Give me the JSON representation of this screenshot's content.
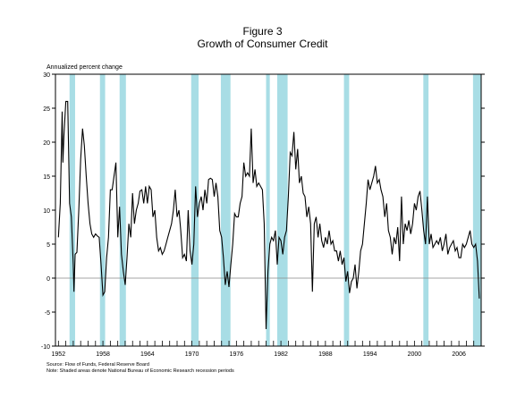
{
  "figure_label": "Figure 3",
  "title": "Growth of Consumer Credit",
  "ylabel": "Annualized percent change",
  "notes": {
    "source": "Source: Flow of Funds, Federal Reserve Board",
    "note": "Note: Shaded areas denote National Bureau of Economic Research recession periods"
  },
  "colors": {
    "recession": "#a8dde5",
    "line": "#000000",
    "zero_line": "#888888"
  },
  "chart_data": {
    "type": "line",
    "title": "Growth of Consumer Credit",
    "ylabel": "Annualized percent change",
    "xlim": [
      1951.6,
      2009.0
    ],
    "ylim": [
      -10,
      30
    ],
    "yticks": [
      -10,
      -5,
      0,
      5,
      10,
      15,
      20,
      25,
      30
    ],
    "xticks": [
      1952,
      1958,
      1964,
      1970,
      1976,
      1982,
      1988,
      1994,
      2000,
      2006
    ],
    "reference_line": 0,
    "recessions": [
      [
        1953.5,
        1954.25
      ],
      [
        1957.6,
        1958.3
      ],
      [
        1960.25,
        1961.1
      ],
      [
        1969.9,
        1970.9
      ],
      [
        1973.9,
        1975.2
      ],
      [
        1980.0,
        1980.5
      ],
      [
        1981.5,
        1982.9
      ],
      [
        1990.5,
        1991.2
      ],
      [
        2001.2,
        2001.9
      ],
      [
        2007.9,
        2009.0
      ]
    ],
    "series": [
      {
        "values": [
          [
            1952.0,
            6
          ],
          [
            1952.25,
            11
          ],
          [
            1952.5,
            24.5
          ],
          [
            1952.6,
            17
          ],
          [
            1952.75,
            21
          ],
          [
            1953.0,
            26
          ],
          [
            1953.25,
            26
          ],
          [
            1953.5,
            11
          ],
          [
            1953.75,
            9
          ],
          [
            1954.0,
            2
          ],
          [
            1954.1,
            -2
          ],
          [
            1954.25,
            3.5
          ],
          [
            1954.5,
            3.8
          ],
          [
            1954.75,
            10
          ],
          [
            1955.0,
            17.5
          ],
          [
            1955.25,
            22
          ],
          [
            1955.5,
            19.5
          ],
          [
            1955.75,
            15
          ],
          [
            1956.0,
            11
          ],
          [
            1956.25,
            8
          ],
          [
            1956.5,
            6.5
          ],
          [
            1956.75,
            6
          ],
          [
            1957.0,
            6.5
          ],
          [
            1957.25,
            6.2
          ],
          [
            1957.5,
            6
          ],
          [
            1957.75,
            2
          ],
          [
            1958.0,
            -2.5
          ],
          [
            1958.25,
            -2
          ],
          [
            1958.5,
            3
          ],
          [
            1958.75,
            6
          ],
          [
            1959.0,
            13
          ],
          [
            1959.25,
            13
          ],
          [
            1959.5,
            15
          ],
          [
            1959.75,
            17
          ],
          [
            1960.0,
            6
          ],
          [
            1960.25,
            10.5
          ],
          [
            1960.5,
            3.5
          ],
          [
            1960.75,
            1
          ],
          [
            1961.0,
            -1
          ],
          [
            1961.25,
            3
          ],
          [
            1961.5,
            8
          ],
          [
            1961.75,
            6
          ],
          [
            1962.0,
            12.5
          ],
          [
            1962.25,
            8
          ],
          [
            1962.5,
            10
          ],
          [
            1962.75,
            11
          ],
          [
            1963.0,
            12.8
          ],
          [
            1963.25,
            13
          ],
          [
            1963.5,
            11
          ],
          [
            1963.75,
            13.5
          ],
          [
            1964.0,
            11
          ],
          [
            1964.25,
            13.5
          ],
          [
            1964.5,
            13
          ],
          [
            1964.75,
            9
          ],
          [
            1965.0,
            10
          ],
          [
            1965.25,
            6
          ],
          [
            1965.5,
            4
          ],
          [
            1965.75,
            4.5
          ],
          [
            1966.0,
            3.5
          ],
          [
            1966.25,
            4
          ],
          [
            1966.5,
            5
          ],
          [
            1966.75,
            6
          ],
          [
            1967.0,
            7
          ],
          [
            1967.25,
            8
          ],
          [
            1967.5,
            10
          ],
          [
            1967.75,
            13
          ],
          [
            1968.0,
            9
          ],
          [
            1968.25,
            10
          ],
          [
            1968.5,
            7
          ],
          [
            1968.75,
            3
          ],
          [
            1969.0,
            3.5
          ],
          [
            1969.25,
            2.5
          ],
          [
            1969.5,
            10
          ],
          [
            1969.75,
            4
          ],
          [
            1970.0,
            2
          ],
          [
            1970.25,
            5
          ],
          [
            1970.5,
            13.5
          ],
          [
            1970.75,
            9
          ],
          [
            1971.0,
            11
          ],
          [
            1971.25,
            12
          ],
          [
            1971.5,
            10
          ],
          [
            1971.75,
            13
          ],
          [
            1972.0,
            11
          ],
          [
            1972.25,
            14.5
          ],
          [
            1972.5,
            14.7
          ],
          [
            1972.75,
            14.5
          ],
          [
            1973.0,
            12
          ],
          [
            1973.25,
            14
          ],
          [
            1973.5,
            12
          ],
          [
            1973.75,
            7
          ],
          [
            1974.0,
            6
          ],
          [
            1974.25,
            3
          ],
          [
            1974.5,
            -1
          ],
          [
            1974.75,
            1
          ],
          [
            1975.0,
            -1.3
          ],
          [
            1975.25,
            2
          ],
          [
            1975.5,
            5
          ],
          [
            1975.75,
            9.5
          ],
          [
            1976.0,
            9
          ],
          [
            1976.25,
            9
          ],
          [
            1976.5,
            11
          ],
          [
            1976.75,
            12
          ],
          [
            1977.0,
            17
          ],
          [
            1977.25,
            15
          ],
          [
            1977.5,
            15.5
          ],
          [
            1977.75,
            15
          ],
          [
            1978.0,
            22
          ],
          [
            1978.25,
            14
          ],
          [
            1978.5,
            16
          ],
          [
            1978.75,
            13.5
          ],
          [
            1979.0,
            14
          ],
          [
            1979.25,
            13.5
          ],
          [
            1979.5,
            13
          ],
          [
            1979.75,
            8
          ],
          [
            1980.0,
            -7.5
          ],
          [
            1980.25,
            1
          ],
          [
            1980.5,
            5
          ],
          [
            1980.75,
            6
          ],
          [
            1981.0,
            5.5
          ],
          [
            1981.25,
            7
          ],
          [
            1981.5,
            2
          ],
          [
            1981.75,
            6
          ],
          [
            1982.0,
            5.5
          ],
          [
            1982.25,
            3.5
          ],
          [
            1982.5,
            6
          ],
          [
            1982.75,
            7
          ],
          [
            1983.0,
            12
          ],
          [
            1983.25,
            18.5
          ],
          [
            1983.5,
            18
          ],
          [
            1983.75,
            21.5
          ],
          [
            1984.0,
            16
          ],
          [
            1984.25,
            19
          ],
          [
            1984.5,
            14
          ],
          [
            1984.75,
            15
          ],
          [
            1985.0,
            12.5
          ],
          [
            1985.25,
            12
          ],
          [
            1985.5,
            9
          ],
          [
            1985.75,
            10.5
          ],
          [
            1986.0,
            8
          ],
          [
            1986.25,
            -2
          ],
          [
            1986.5,
            8
          ],
          [
            1986.75,
            9
          ],
          [
            1987.0,
            6
          ],
          [
            1987.25,
            8
          ],
          [
            1987.5,
            5.5
          ],
          [
            1987.75,
            4.5
          ],
          [
            1988.0,
            6
          ],
          [
            1988.25,
            5
          ],
          [
            1988.5,
            7
          ],
          [
            1988.75,
            5
          ],
          [
            1989.0,
            5.5
          ],
          [
            1989.25,
            4
          ],
          [
            1989.5,
            4
          ],
          [
            1989.75,
            2.5
          ],
          [
            1990.0,
            4
          ],
          [
            1990.25,
            2
          ],
          [
            1990.5,
            3
          ],
          [
            1990.75,
            -0.5
          ],
          [
            1991.0,
            1
          ],
          [
            1991.25,
            -2.2
          ],
          [
            1991.5,
            -0.5
          ],
          [
            1991.75,
            0
          ],
          [
            1992.0,
            2
          ],
          [
            1992.25,
            -1.5
          ],
          [
            1992.5,
            1
          ],
          [
            1992.75,
            4
          ],
          [
            1993.0,
            5
          ],
          [
            1993.25,
            8
          ],
          [
            1993.5,
            11
          ],
          [
            1993.75,
            14.5
          ],
          [
            1994.0,
            13
          ],
          [
            1994.25,
            14
          ],
          [
            1994.5,
            15
          ],
          [
            1994.75,
            16.5
          ],
          [
            1995.0,
            14
          ],
          [
            1995.25,
            14.5
          ],
          [
            1995.5,
            13
          ],
          [
            1995.75,
            12
          ],
          [
            1996.0,
            9
          ],
          [
            1996.25,
            11
          ],
          [
            1996.5,
            7
          ],
          [
            1996.75,
            6
          ],
          [
            1997.0,
            3.5
          ],
          [
            1997.25,
            6
          ],
          [
            1997.5,
            5
          ],
          [
            1997.75,
            7.5
          ],
          [
            1998.0,
            2.5
          ],
          [
            1998.25,
            12
          ],
          [
            1998.5,
            5
          ],
          [
            1998.75,
            8
          ],
          [
            1999.0,
            7
          ],
          [
            1999.25,
            8.5
          ],
          [
            1999.5,
            6.5
          ],
          [
            1999.75,
            8
          ],
          [
            2000.0,
            11
          ],
          [
            2000.25,
            10
          ],
          [
            2000.5,
            12
          ],
          [
            2000.75,
            12.8
          ],
          [
            2001.0,
            10
          ],
          [
            2001.25,
            7
          ],
          [
            2001.5,
            5
          ],
          [
            2001.75,
            12
          ],
          [
            2002.0,
            5
          ],
          [
            2002.25,
            6.5
          ],
          [
            2002.5,
            4.5
          ],
          [
            2002.75,
            5
          ],
          [
            2003.0,
            5.5
          ],
          [
            2003.25,
            5
          ],
          [
            2003.5,
            6
          ],
          [
            2003.75,
            4
          ],
          [
            2004.0,
            5
          ],
          [
            2004.25,
            6.5
          ],
          [
            2004.5,
            3.5
          ],
          [
            2004.75,
            4.5
          ],
          [
            2005.0,
            5
          ],
          [
            2005.25,
            5.5
          ],
          [
            2005.5,
            4
          ],
          [
            2005.75,
            4.5
          ],
          [
            2006.0,
            3
          ],
          [
            2006.25,
            3
          ],
          [
            2006.5,
            5
          ],
          [
            2006.75,
            4.5
          ],
          [
            2007.0,
            5
          ],
          [
            2007.25,
            6
          ],
          [
            2007.5,
            7
          ],
          [
            2007.75,
            5
          ],
          [
            2008.0,
            4.5
          ],
          [
            2008.25,
            5
          ],
          [
            2008.5,
            2.5
          ],
          [
            2008.75,
            -3
          ]
        ]
      }
    ]
  }
}
